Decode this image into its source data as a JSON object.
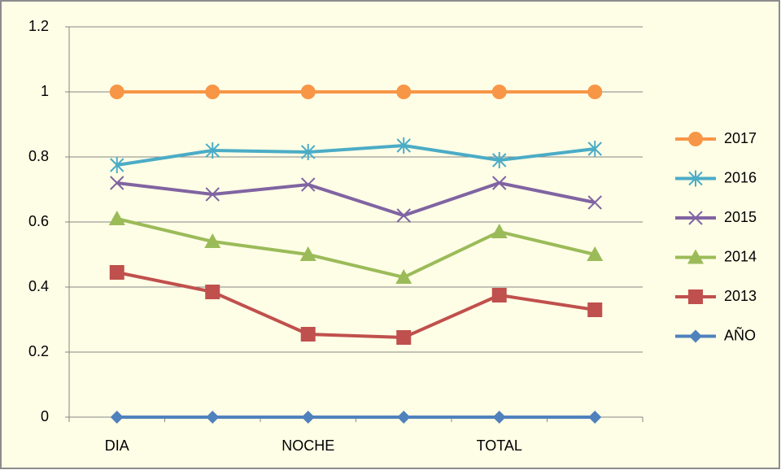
{
  "chart_data": {
    "type": "line",
    "categories": [
      "DIA",
      null,
      "NOCHE",
      null,
      "TOTAL",
      null
    ],
    "series": [
      {
        "name": "2017",
        "color": "#f79646",
        "marker": "circle",
        "values": [
          1,
          1,
          1,
          1,
          1,
          1
        ]
      },
      {
        "name": "2016",
        "color": "#4bacc6",
        "marker": "star",
        "values": [
          0.775,
          0.82,
          0.815,
          0.835,
          0.79,
          0.825
        ]
      },
      {
        "name": "2015",
        "color": "#8064a2",
        "marker": "x",
        "values": [
          0.72,
          0.685,
          0.715,
          0.62,
          0.72,
          0.66
        ]
      },
      {
        "name": "2014",
        "color": "#9bbb59",
        "marker": "triangle",
        "values": [
          0.61,
          0.54,
          0.5,
          0.43,
          0.57,
          0.5
        ]
      },
      {
        "name": "2013",
        "color": "#c0504d",
        "marker": "square",
        "values": [
          0.445,
          0.385,
          0.255,
          0.245,
          0.375,
          0.33
        ]
      },
      {
        "name": "AÑO",
        "color": "#4f81bd",
        "marker": "diamond",
        "values": [
          0,
          0,
          0,
          0,
          0,
          0
        ]
      }
    ],
    "ylim": [
      0,
      1.2
    ],
    "yticks": [
      0,
      0.2,
      0.4,
      0.6,
      0.8,
      1,
      1.2
    ],
    "grid": true,
    "legend": "right"
  }
}
